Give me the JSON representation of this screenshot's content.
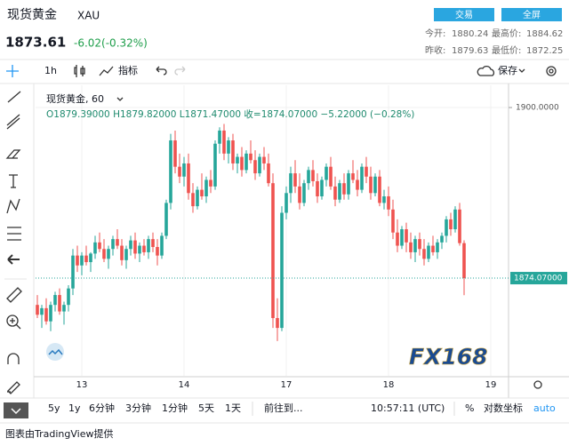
{
  "header": {
    "title": "现货黄金",
    "symbol": "XAU",
    "price": "1873.61",
    "change": "-6.02(-0.32%)",
    "buttons": [
      "交易",
      "全屏"
    ],
    "stats": [
      [
        "今开:",
        "1880.24",
        "最高价:",
        "1884.62"
      ],
      [
        "昨收:",
        "1879.63",
        "最低价:",
        "1872.25"
      ]
    ]
  },
  "toolbar": {
    "interval": "1h",
    "indicators": "指标",
    "save": "保存"
  },
  "legend": {
    "name": "现货黄金, 60",
    "ohlc": "O1879.39000 H1879.82000 L1871.47000 收=1874.07000 −5.22000 (−0.28%)"
  },
  "logo": "FX168",
  "bottom_bar": {
    "ranges": [
      "5y",
      "1y",
      "6分钟",
      "3分钟",
      "1分钟",
      "5天",
      "1天"
    ],
    "goto": "前往到...",
    "time": "10:57:11 (UTC)",
    "percent": "%",
    "log": "对数坐标",
    "auto": "auto"
  },
  "footer": "图表由TradingView提供",
  "chart_data": {
    "type": "candlestick",
    "categories": [
      null,
      null,
      null,
      null,
      null,
      null,
      null,
      null,
      null,
      null,
      "13",
      null,
      null,
      null,
      null,
      null,
      null,
      null,
      null,
      null,
      null,
      null,
      null,
      null,
      null,
      null,
      null,
      null,
      null,
      null,
      null,
      null,
      null,
      "14",
      null,
      null,
      null,
      null,
      null,
      null,
      null,
      null,
      null,
      null,
      null,
      null,
      null,
      null,
      null,
      null,
      null,
      null,
      null,
      null,
      null,
      null,
      "17",
      null,
      null,
      null,
      null,
      null,
      null,
      null,
      null,
      null,
      null,
      null,
      null,
      null,
      null,
      null,
      null,
      null,
      null,
      null,
      null,
      null,
      null,
      "18",
      null,
      null,
      null,
      null,
      null,
      null,
      null,
      null,
      null,
      null,
      null,
      null,
      null,
      null,
      null,
      null,
      null,
      null,
      null,
      null,
      null,
      null,
      "19"
    ],
    "open": [
      1870,
      1868.5,
      1869.5,
      1867.5,
      1870,
      1871.5,
      1869,
      1870,
      1872.5,
      1877.5,
      1876,
      1877.5,
      1876.5,
      1877.8,
      1879.5,
      1878.5,
      1877,
      1878.5,
      1880,
      1879,
      1876.8,
      1878.5,
      1879.8,
      1877.8,
      1879,
      1878,
      1880,
      1878.8,
      1877.5,
      1880.5,
      1885.5,
      1895,
      1891,
      1889.5,
      1891.5,
      1887,
      1885,
      1887.5,
      1886.5,
      1889,
      1888,
      1894.5,
      1896.5,
      1893,
      1895,
      1891.5,
      1892.5,
      1890.5,
      1893,
      1892,
      1890,
      1892.5,
      1891.5,
      1888.5,
      1868,
      1866.5,
      1884,
      1887,
      1890,
      1888,
      1885.5,
      1888.5,
      1890.5,
      1888.8,
      1886.5,
      1889,
      1891,
      1888,
      1886,
      1888.5,
      1886.8,
      1890,
      1889,
      1887.5,
      1891,
      1889.5,
      1887,
      1889.5,
      1885.5,
      1886.5,
      1884.5,
      1881,
      1879,
      1881.5,
      1879.5,
      1878,
      1880,
      1878.5,
      1877,
      1879,
      1878,
      1879.5,
      1880.5,
      1883,
      1881.5,
      1884.5,
      1879.39,
      null,
      null,
      null,
      null,
      null,
      null
    ],
    "high": [
      1871.5,
      1870,
      1871,
      1870.5,
      1872,
      1872.5,
      1870.5,
      1873,
      1878.5,
      1879,
      1878,
      1879,
      1878,
      1880.5,
      1881,
      1880,
      1879,
      1880.5,
      1881.5,
      1880,
      1879,
      1880.5,
      1881,
      1879.5,
      1880,
      1880.5,
      1881,
      1880,
      1881,
      1886,
      1896,
      1896.5,
      1893,
      1892.5,
      1893,
      1888.5,
      1888,
      1890,
      1889.5,
      1890.5,
      1895,
      1897,
      1897.5,
      1895.5,
      1896,
      1893,
      1894,
      1893.5,
      1895,
      1893.5,
      1893,
      1894,
      1893,
      1890,
      1871,
      1885,
      1888,
      1891,
      1892,
      1890,
      1889,
      1891,
      1892,
      1890,
      1889.5,
      1891.5,
      1892.5,
      1889.5,
      1889,
      1890,
      1890.5,
      1892,
      1890.5,
      1891.5,
      1892.5,
      1891,
      1890,
      1890.5,
      1887.5,
      1888,
      1886,
      1883,
      1882,
      1882.5,
      1881,
      1880.5,
      1881,
      1880,
      1879.5,
      1880.5,
      1880,
      1881,
      1883.5,
      1884,
      1885,
      1885.5,
      1879.82,
      null,
      null,
      null,
      null,
      null,
      null
    ],
    "low": [
      1868,
      1866.5,
      1867,
      1866,
      1869,
      1868.5,
      1867,
      1869,
      1871.5,
      1875,
      1874.5,
      1876,
      1875,
      1877,
      1878,
      1876.5,
      1875.5,
      1877.5,
      1878.5,
      1876,
      1875.5,
      1877.5,
      1877,
      1876.5,
      1877.5,
      1877,
      1878,
      1876,
      1877,
      1880,
      1884.5,
      1890,
      1888.5,
      1888,
      1886,
      1884,
      1884.5,
      1886,
      1885.5,
      1887,
      1887.5,
      1893,
      1892,
      1891.5,
      1890.5,
      1890,
      1889.5,
      1890,
      1891.5,
      1889,
      1889.5,
      1890.5,
      1888,
      1866.5,
      1864.5,
      1866,
      1883,
      1885.5,
      1887,
      1884.5,
      1885,
      1887.5,
      1888,
      1885.5,
      1886,
      1888,
      1887.5,
      1885,
      1885.5,
      1886,
      1886,
      1888.5,
      1886.5,
      1887,
      1888.5,
      1886,
      1886.5,
      1885,
      1884.5,
      1883.5,
      1880,
      1878,
      1878.5,
      1878,
      1877,
      1876.5,
      1877.5,
      1876,
      1876.5,
      1877.5,
      1877,
      1878.5,
      1879.5,
      1880.5,
      1881,
      1879,
      1871.47,
      null,
      null,
      null,
      null,
      null,
      null
    ],
    "close": [
      1868.5,
      1869.5,
      1867.5,
      1870,
      1871.5,
      1869,
      1870,
      1872.5,
      1877.5,
      1876,
      1877.5,
      1876.5,
      1877.8,
      1879.5,
      1878.5,
      1877,
      1878.5,
      1880,
      1879,
      1876.8,
      1878.5,
      1879.8,
      1877.8,
      1879,
      1878,
      1880,
      1878.8,
      1877.5,
      1880.5,
      1885.5,
      1895,
      1891,
      1889.5,
      1891.5,
      1887,
      1885,
      1887.5,
      1886.5,
      1889,
      1888,
      1894.5,
      1896.5,
      1893,
      1895,
      1891.5,
      1892.5,
      1890.5,
      1893,
      1892,
      1890,
      1892.5,
      1891.5,
      1888.5,
      1868,
      1866.5,
      1884,
      1887,
      1890,
      1888,
      1885.5,
      1888.5,
      1890.5,
      1888.8,
      1886.5,
      1889,
      1891,
      1888,
      1886,
      1888.5,
      1886.8,
      1890,
      1889,
      1887.5,
      1891,
      1889.5,
      1887,
      1889.5,
      1885.5,
      1886.5,
      1884.5,
      1881,
      1879,
      1881.5,
      1879.5,
      1878,
      1880,
      1878.5,
      1877,
      1879,
      1878,
      1879.5,
      1880.5,
      1883,
      1881.5,
      1884.5,
      1879.39,
      1874.07,
      null,
      null,
      null,
      null,
      null,
      null
    ],
    "up_color": "#26a69a",
    "down_color": "#ef5350",
    "ylim": [
      1859.22,
      1903.11
    ],
    "yticks": [
      {
        "value": 1900,
        "label": "1900.0000"
      }
    ],
    "last_price": {
      "value": 1874.07,
      "label": "1874.07000"
    }
  }
}
